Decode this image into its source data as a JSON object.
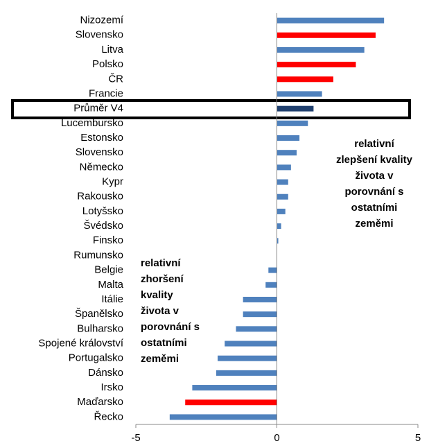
{
  "chart_data": {
    "type": "barh",
    "categories": [
      "Nizozemí",
      "Slovensko",
      "Litva",
      "Polsko",
      "ČR",
      "Francie",
      "Průměr V4",
      "Lucembursko",
      "Estonsko",
      "Slovensko",
      "Německo",
      "Kypr",
      "Rakousko",
      "Lotyšsko",
      "Švédsko",
      "Finsko",
      "Rumunsko",
      "Belgie",
      "Malta",
      "Itálie",
      "Španělsko",
      "Bulharsko",
      "Spojené království",
      "Portugalsko",
      "Dánsko",
      "Irsko",
      "Maďarsko",
      "Řecko"
    ],
    "values": [
      3.8,
      3.5,
      3.1,
      2.8,
      2.0,
      1.6,
      1.3,
      1.1,
      0.8,
      0.7,
      0.5,
      0.4,
      0.4,
      0.3,
      0.15,
      0.05,
      0,
      -0.3,
      -0.4,
      -1.2,
      -1.2,
      -1.45,
      -1.85,
      -2.1,
      -2.15,
      -3.0,
      -3.25,
      -3.8
    ],
    "colors": [
      "#4f81bd",
      "#ff0000",
      "#4f81bd",
      "#ff0000",
      "#ff0000",
      "#4f81bd",
      "#1f3f6e",
      "#4f81bd",
      "#4f81bd",
      "#4f81bd",
      "#4f81bd",
      "#4f81bd",
      "#4f81bd",
      "#4f81bd",
      "#4f81bd",
      "#4f81bd",
      "#4f81bd",
      "#4f81bd",
      "#4f81bd",
      "#4f81bd",
      "#4f81bd",
      "#4f81bd",
      "#4f81bd",
      "#4f81bd",
      "#4f81bd",
      "#4f81bd",
      "#ff0000",
      "#4f81bd"
    ],
    "xlim": [
      -5,
      5
    ],
    "xticks": [
      -5,
      0,
      5
    ],
    "annotations": [
      {
        "lines": [
          "relativní",
          "zlepšení kvality",
          "života v",
          "porovnání s",
          "ostatními",
          "zeměmi"
        ]
      },
      {
        "lines": [
          "relativní",
          "zhoršení",
          "kvality",
          "života v",
          "porovnání s",
          "ostatními",
          "zeměmi"
        ]
      }
    ]
  }
}
